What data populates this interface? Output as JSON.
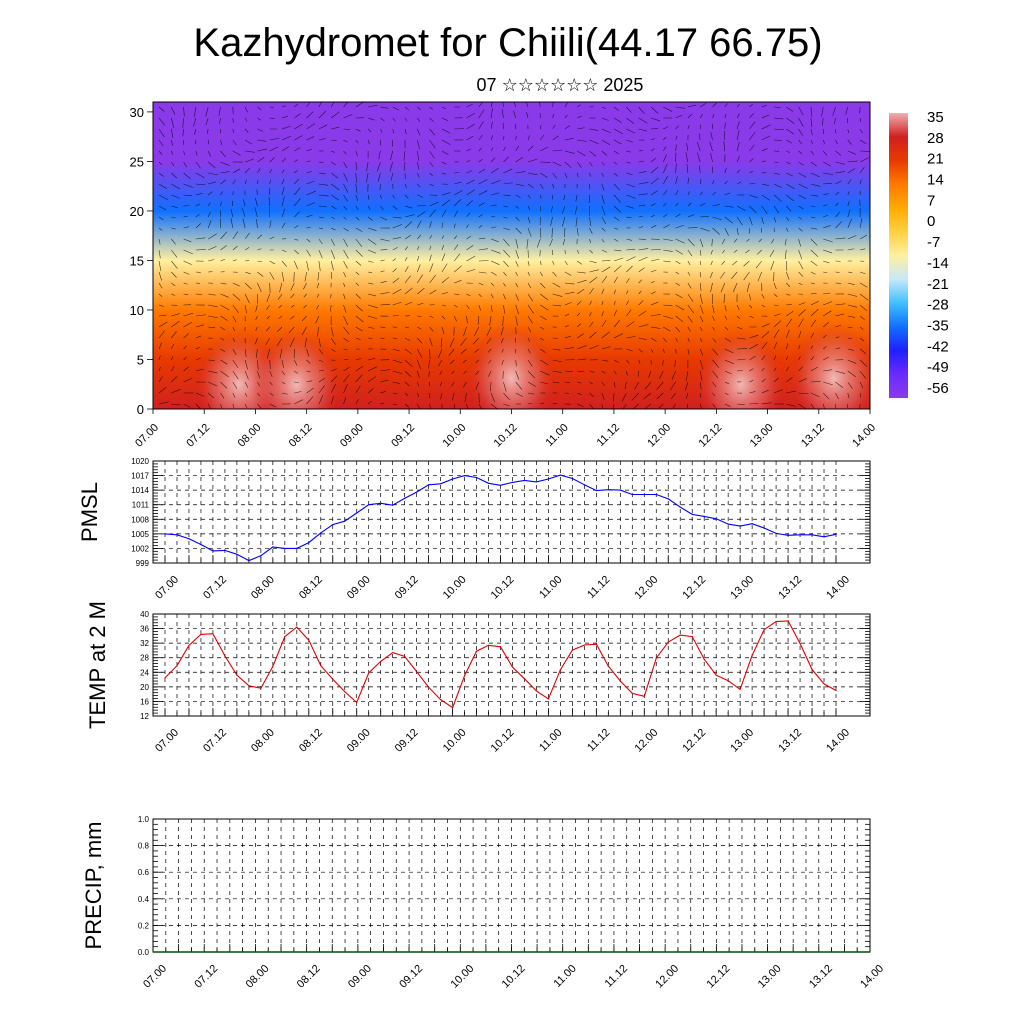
{
  "header": {
    "title": "Kazhydromet for Chiili(44.17 66.75)",
    "subtitle": "07 ☆☆☆☆☆☆ 2025"
  },
  "time_labels": [
    "07.00",
    "07.12",
    "08.00",
    "08.12",
    "09.00",
    "09.12",
    "10.00",
    "10.12",
    "11.00",
    "11.12",
    "12.00",
    "12.12",
    "13.00",
    "13.12",
    "14.00"
  ],
  "colors": {
    "pmsl_line": "#0000ff",
    "temp_line": "#e00000",
    "precip_line": "#005000",
    "colorbar": [
      "#f0b0b0",
      "#d02020",
      "#e83a00",
      "#ff7a00",
      "#ffaa00",
      "#ffd040",
      "#fff0a0",
      "#c8e8f8",
      "#40c0ff",
      "#1070ff",
      "#2020ff",
      "#6a2aff",
      "#8a3ae8"
    ]
  },
  "chart_data": [
    {
      "type": "heatmap",
      "title": "",
      "ylabel": "",
      "ylim": [
        0,
        31
      ],
      "yticks": [
        0,
        5,
        10,
        15,
        20,
        25,
        30
      ],
      "x": [
        "07.00",
        "07.12",
        "08.00",
        "08.12",
        "09.00",
        "09.12",
        "10.00",
        "10.12",
        "11.00",
        "11.12",
        "12.00",
        "12.12",
        "13.00",
        "13.12",
        "14.00"
      ],
      "colorbar_labels": [
        "35",
        "28",
        "21",
        "14",
        "7",
        "0",
        "-7",
        "-14",
        "-21",
        "-28",
        "-35",
        "-42",
        "-49",
        "-56"
      ],
      "colorbar_range": [
        -60,
        38
      ],
      "level_temperature_profile": {
        "levels": [
          0,
          5,
          10,
          15,
          20,
          25,
          30,
          31
        ],
        "values": [
          30,
          22,
          12,
          -8,
          -35,
          -58,
          -60,
          -60
        ]
      },
      "overlay": "wind vectors"
    },
    {
      "type": "line",
      "ylabel": "PMSL",
      "ylim": [
        999,
        1020
      ],
      "yticks": [
        999,
        1002,
        1005,
        1008,
        1011,
        1014,
        1017,
        1020
      ],
      "series": [
        {
          "values": [
            1005,
            1004.8,
            1004,
            1002.8,
            1001.5,
            1001.6,
            1000.8,
            999.5,
            1000.5,
            1002.3,
            1002,
            1002,
            1003.2,
            1005.2,
            1006.9,
            1007.6,
            1009.3,
            1011,
            1011.3,
            1010.9,
            1012.3,
            1013.6,
            1015.1,
            1015.3,
            1016.3,
            1017,
            1016.6,
            1015.4,
            1015,
            1015.6,
            1016,
            1015.7,
            1016.3,
            1017.1,
            1016.4,
            1015.1,
            1013.9,
            1014.1,
            1014,
            1013.1,
            1013.1,
            1013.1,
            1012.2,
            1010.5,
            1009,
            1008.6,
            1008.1,
            1007,
            1006.6,
            1007.1,
            1006.2,
            1005.1,
            1004.7,
            1004.8,
            1004.8,
            1004.4,
            1004.9
          ]
        }
      ]
    },
    {
      "type": "line",
      "ylabel": "TEMP at 2 M",
      "ylim": [
        12,
        40
      ],
      "yticks": [
        12,
        16,
        20,
        24,
        28,
        32,
        36,
        40
      ],
      "series": [
        {
          "values": [
            22.5,
            25.8,
            31.4,
            34.4,
            34.6,
            28.5,
            23.2,
            20.3,
            19.6,
            25.6,
            33.8,
            36.4,
            32.8,
            25.8,
            22.1,
            18.7,
            15.7,
            23.8,
            27.0,
            29.4,
            28.4,
            24.2,
            19.9,
            16.5,
            14.3,
            23.1,
            29.8,
            31.4,
            31.0,
            25.4,
            22.2,
            18.9,
            16.7,
            24.7,
            30.1,
            31.5,
            31.7,
            25.7,
            21.6,
            18.2,
            17.4,
            27.9,
            32.3,
            34.2,
            33.8,
            27.6,
            23.2,
            21.7,
            19.3,
            28.6,
            35.7,
            37.9,
            38.1,
            31.9,
            24.8,
            20.8,
            19.0
          ]
        }
      ]
    },
    {
      "type": "line",
      "ylabel": "PRECIP, mm",
      "ylim": [
        0.0,
        1.0
      ],
      "yticks": [
        "0.0",
        "0.2",
        "0.4",
        "0.6",
        "0.8",
        "1.0"
      ],
      "series": [
        {
          "values": [
            0,
            0,
            0,
            0,
            0,
            0,
            0,
            0,
            0,
            0,
            0,
            0,
            0,
            0,
            0,
            0,
            0,
            0,
            0,
            0,
            0,
            0,
            0,
            0,
            0,
            0,
            0,
            0,
            0,
            0,
            0,
            0,
            0,
            0,
            0,
            0,
            0,
            0,
            0,
            0,
            0,
            0,
            0,
            0,
            0,
            0,
            0,
            0,
            0,
            0,
            0,
            0,
            0,
            0,
            0,
            0,
            0
          ]
        }
      ]
    }
  ]
}
